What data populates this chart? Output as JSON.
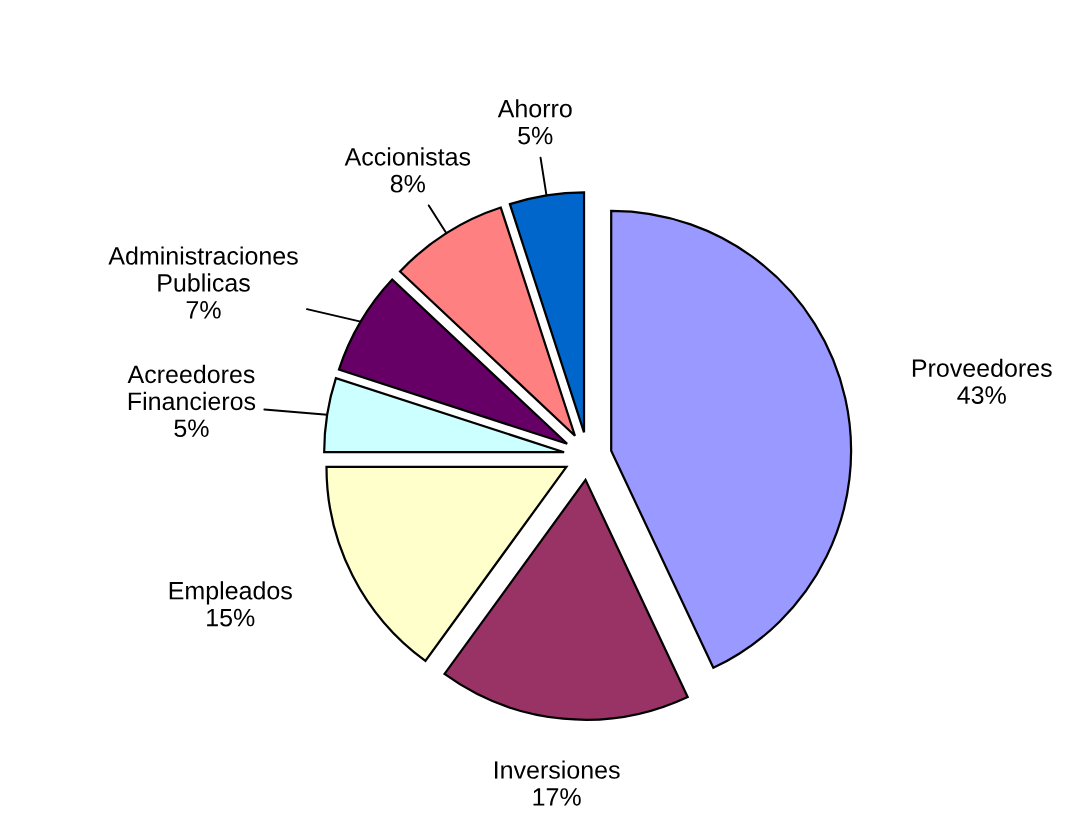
{
  "chart_data": {
    "type": "pie",
    "categories": [
      "Proveedores",
      "Inversiones",
      "Empleados",
      "Acreedores\nFinancieros",
      "Administraciones\nPublicas",
      "Accionistas",
      "Ahorro"
    ],
    "values": [
      43,
      17,
      15,
      5,
      7,
      8,
      5
    ],
    "colors": [
      "#9999ff",
      "#993366",
      "#ffffcc",
      "#ccffff",
      "#660066",
      "#ff8080",
      "#0066cc"
    ],
    "value_labels": [
      "43%",
      "17%",
      "15%",
      "5%",
      "7%",
      "8%",
      "5%"
    ],
    "legend": false
  }
}
